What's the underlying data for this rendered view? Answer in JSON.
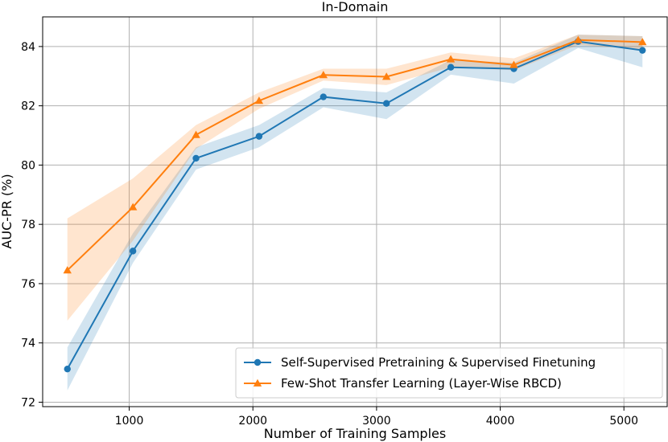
{
  "chart_data": {
    "type": "line",
    "title": "In-Domain",
    "xlabel": "Number of Training Samples",
    "ylabel": "AUC-PR (%)",
    "xlim": [
      300,
      5350
    ],
    "ylim": [
      71.85,
      85.0
    ],
    "xticks": [
      1000,
      2000,
      3000,
      4000,
      5000
    ],
    "yticks": [
      72,
      74,
      76,
      78,
      80,
      82,
      84
    ],
    "grid": true,
    "legend_position": "lower-right",
    "x": [
      500,
      1030,
      1540,
      2050,
      2570,
      3080,
      3600,
      4110,
      4630,
      5150
    ],
    "series": [
      {
        "name": "Self-Supervised Pretraining & Supervised Finetuning",
        "color": "#1f77b4",
        "marker": "circle",
        "values": [
          73.12,
          77.1,
          80.23,
          80.97,
          82.3,
          82.08,
          83.3,
          83.25,
          84.17,
          83.87
        ],
        "lower": [
          72.4,
          76.7,
          79.85,
          80.6,
          81.95,
          81.55,
          83.05,
          82.75,
          83.95,
          83.3
        ],
        "upper": [
          73.85,
          77.7,
          80.6,
          81.35,
          82.6,
          82.45,
          83.55,
          83.45,
          84.4,
          84.35
        ]
      },
      {
        "name": "Few-Shot Transfer Learning (Layer-Wise RBCD)",
        "color": "#ff7f0e",
        "marker": "triangle",
        "values": [
          76.45,
          78.58,
          81.02,
          82.17,
          83.04,
          82.98,
          83.57,
          83.38,
          84.22,
          84.15
        ],
        "lower": [
          74.75,
          77.45,
          80.55,
          81.9,
          82.85,
          82.7,
          83.3,
          83.2,
          84.05,
          83.9
        ],
        "upper": [
          78.2,
          79.55,
          81.35,
          82.45,
          83.25,
          83.25,
          83.8,
          83.6,
          84.4,
          84.35
        ]
      }
    ]
  }
}
